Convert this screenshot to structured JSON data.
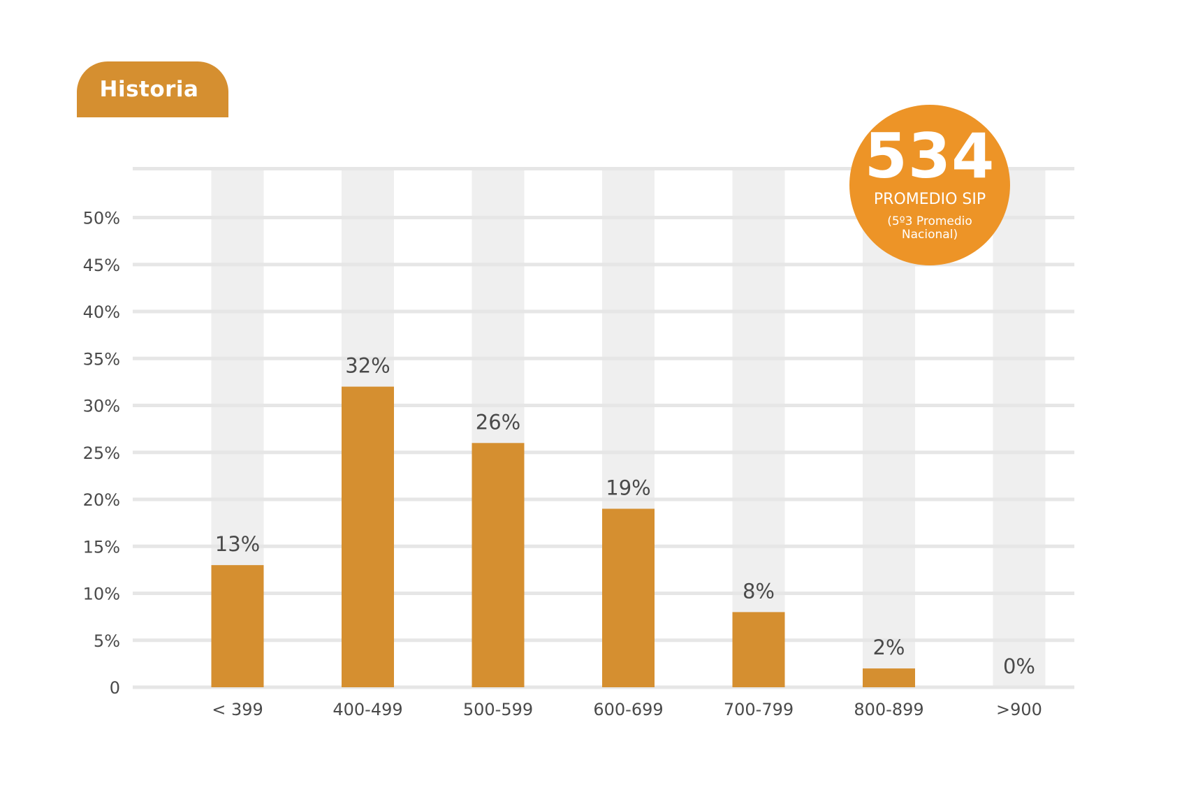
{
  "tab": {
    "label": "Historia"
  },
  "badge": {
    "value": "534",
    "label": "PROMEDIO SIP",
    "note": "(5º3 Promedio Nacional)"
  },
  "colors": {
    "bar": "#d58f30",
    "column_bg": "#efefef",
    "grid": "#e6e6e6",
    "badge": "#ed9427",
    "text": "#4a4a4a"
  },
  "chart_data": {
    "type": "bar",
    "categories": [
      "< 399",
      "400-499",
      "500-599",
      "600-699",
      "700-799",
      "800-899",
      ">900"
    ],
    "values": [
      13,
      32,
      26,
      19,
      8,
      2,
      0
    ],
    "value_labels": [
      "13%",
      "32%",
      "26%",
      "19%",
      "8%",
      "2%",
      "0%"
    ],
    "y_ticks": [
      0,
      5,
      10,
      15,
      20,
      25,
      30,
      35,
      40,
      45,
      50
    ],
    "y_tick_labels": [
      "0",
      "5%",
      "10%",
      "15%",
      "20%",
      "25%",
      "30%",
      "35%",
      "40%",
      "45%",
      "50%"
    ],
    "ylim": [
      0,
      55
    ],
    "grid": true,
    "title": "",
    "xlabel": "",
    "ylabel": ""
  }
}
